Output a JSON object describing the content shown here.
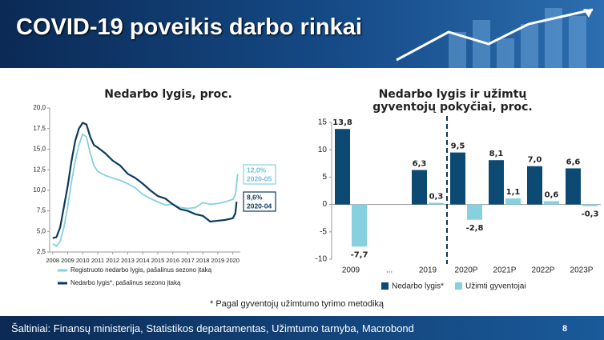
{
  "title": "COVID-19 poveikis darbo rinkai",
  "footnote": "* Pagal gyventojų užimtumo tyrimo metodiką",
  "source": "Šaltiniai: Finansų ministerija, Statistikos departamentas, Užimtumo tarnyba, Macrobond",
  "page_number": "8",
  "chart_data": [
    {
      "type": "line",
      "title": "Nedarbo lygis, proc.",
      "xlim": [
        2007.8,
        2020.5
      ],
      "xticks": [
        2008,
        2009,
        2010,
        2011,
        2012,
        2013,
        2014,
        2015,
        2016,
        2017,
        2018,
        2019,
        2020
      ],
      "ylim": [
        2.5,
        20
      ],
      "yticks": [
        {
          "value": 2.5,
          "label": "2,5"
        },
        {
          "value": 5,
          "label": "5,0"
        },
        {
          "value": 7.5,
          "label": "7,5"
        },
        {
          "value": 10,
          "label": "10,0"
        },
        {
          "value": 12.5,
          "label": "12,5"
        },
        {
          "value": 15,
          "label": "15,0"
        },
        {
          "value": 17.5,
          "label": "17,5"
        },
        {
          "value": 20,
          "label": "20,0"
        }
      ],
      "grid": false,
      "series": [
        {
          "name": "Registruoto nedarbo lygis, pašalinus sezono įtaką",
          "color": "#86d0e0",
          "x": [
            2008.0,
            2008.25,
            2008.5,
            2008.75,
            2009.0,
            2009.25,
            2009.5,
            2009.75,
            2010.0,
            2010.25,
            2010.5,
            2010.75,
            2011.0,
            2011.5,
            2012.0,
            2012.5,
            2013.0,
            2013.5,
            2014.0,
            2014.5,
            2015.0,
            2015.5,
            2016.0,
            2016.5,
            2017.0,
            2017.5,
            2018.0,
            2018.5,
            2019.0,
            2019.5,
            2020.0,
            2020.17,
            2020.33
          ],
          "values": [
            3.5,
            3.2,
            3.8,
            5.5,
            8,
            11,
            13.5,
            15.5,
            16.8,
            16.5,
            14.5,
            13,
            12.3,
            11.8,
            11.5,
            11.2,
            10.8,
            10.3,
            9.5,
            9.0,
            8.6,
            8.2,
            8.3,
            7.9,
            7.8,
            7.9,
            8.5,
            8.3,
            8.4,
            8.6,
            8.9,
            9.5,
            12.0
          ],
          "end_label": {
            "value_text": "12,0%",
            "date": "2020-05"
          }
        },
        {
          "name": "Nedarbo lygis*, pašalinus sezono įtaką",
          "color": "#0d3a5c",
          "x": [
            2008.0,
            2008.25,
            2008.5,
            2008.75,
            2009.0,
            2009.25,
            2009.5,
            2009.75,
            2010.0,
            2010.25,
            2010.5,
            2010.75,
            2011.0,
            2011.5,
            2012.0,
            2012.5,
            2013.0,
            2013.5,
            2014.0,
            2014.5,
            2015.0,
            2015.5,
            2016.0,
            2016.5,
            2017.0,
            2017.5,
            2018.0,
            2018.5,
            2019.0,
            2019.5,
            2020.0,
            2020.17,
            2020.25
          ],
          "values": [
            4.2,
            4.3,
            5.5,
            8,
            10.5,
            13.5,
            16,
            17.5,
            18.2,
            18.0,
            16.5,
            15.5,
            15.2,
            14.5,
            13.6,
            13.0,
            12.0,
            11.5,
            10.8,
            10.0,
            9.3,
            9.0,
            8.3,
            7.7,
            7.5,
            7.1,
            6.9,
            6.2,
            6.3,
            6.4,
            6.6,
            7.2,
            8.6
          ],
          "end_label": {
            "value_text": "8,6%",
            "date": "2020-04"
          }
        }
      ]
    },
    {
      "type": "bar",
      "title": "Nedarbo lygis ir užimtų gyventojų pokyčiai, proc.",
      "categories": [
        "2009",
        "...",
        "2019",
        "2020P",
        "2021P",
        "2022P",
        "2023P"
      ],
      "ylim": [
        -10,
        15
      ],
      "yticks": [
        -10,
        -5,
        0,
        5,
        10,
        15
      ],
      "series": [
        {
          "name": "Nedarbo lygis*",
          "color": "#0d4a73",
          "values": [
            13.8,
            null,
            6.3,
            9.5,
            8.1,
            7.0,
            6.6
          ],
          "value_labels": [
            "13,8",
            null,
            "6,3",
            "9,5",
            "8,1",
            "7,0",
            "6,6"
          ]
        },
        {
          "name": "Užimti gyventojai",
          "color": "#86d0e0",
          "values": [
            -7.7,
            null,
            0.3,
            -2.8,
            1.1,
            0.6,
            -0.3
          ],
          "value_labels": [
            "-7,7",
            null,
            "0,3",
            "-2,8",
            "1,1",
            "0,6",
            "-0,3"
          ]
        }
      ]
    }
  ]
}
